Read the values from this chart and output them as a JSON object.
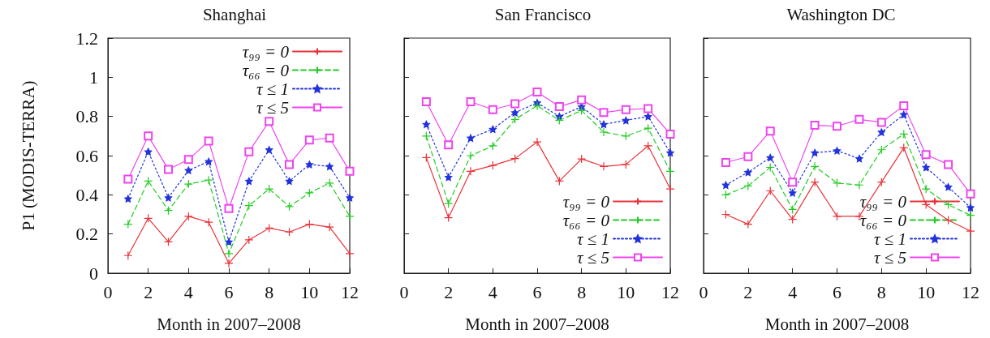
{
  "chart_data": [
    {
      "type": "line",
      "title": "Shanghai",
      "xlabel": "Month in 2007–2008",
      "ylabel": "P1 (MODIS-TERRA)",
      "x": [
        1,
        2,
        3,
        4,
        5,
        6,
        7,
        8,
        9,
        10,
        11,
        12
      ],
      "xlim": [
        0,
        12
      ],
      "xticks": [
        0,
        2,
        4,
        6,
        8,
        10,
        12
      ],
      "ylim": [
        0,
        1.2
      ],
      "yticks": [
        0,
        0.2,
        0.4,
        0.6,
        0.8,
        1,
        1.2
      ],
      "legend": "top right",
      "series": [
        {
          "name": "τ₉₉ = 0",
          "color": "#e8333a",
          "marker": "cross",
          "line_style": "solid",
          "values": [
            0.09,
            0.28,
            0.16,
            0.29,
            0.26,
            0.05,
            0.17,
            0.23,
            0.21,
            0.25,
            0.235,
            0.1
          ]
        },
        {
          "name": "τ₆₆ = 0",
          "color": "#22cc22",
          "marker": "cross",
          "line_style": "dashed",
          "values": [
            0.25,
            0.47,
            0.32,
            0.455,
            0.475,
            0.1,
            0.345,
            0.43,
            0.34,
            0.41,
            0.46,
            0.29
          ]
        },
        {
          "name": "τ ≤ 1",
          "color": "#2233dd",
          "marker": "star",
          "line_style": "dotted",
          "values": [
            0.38,
            0.62,
            0.385,
            0.525,
            0.57,
            0.16,
            0.47,
            0.63,
            0.47,
            0.555,
            0.545,
            0.385
          ]
        },
        {
          "name": "τ ≤ 5",
          "color": "#ee44ee",
          "marker": "square",
          "line_style": "solid",
          "values": [
            0.48,
            0.7,
            0.53,
            0.58,
            0.675,
            0.33,
            0.62,
            0.775,
            0.555,
            0.68,
            0.69,
            0.52
          ]
        }
      ]
    },
    {
      "type": "line",
      "title": "San Francisco",
      "xlabel": "Month in 2007–2008",
      "x": [
        1,
        2,
        3,
        4,
        5,
        6,
        7,
        8,
        9,
        10,
        11,
        12
      ],
      "xlim": [
        0,
        12
      ],
      "xticks": [
        0,
        2,
        4,
        6,
        8,
        10,
        12
      ],
      "ylim": [
        0,
        1.2
      ],
      "yticks": [
        0,
        0.2,
        0.4,
        0.6,
        0.8,
        1,
        1.2
      ],
      "legend": "bottom right",
      "tick_labels": "x",
      "series": [
        {
          "name": "τ₉₉ = 0",
          "color": "#e8333a",
          "marker": "cross",
          "line_style": "solid",
          "values": [
            0.59,
            0.283,
            0.52,
            0.55,
            0.585,
            0.67,
            0.47,
            0.583,
            0.545,
            0.555,
            0.65,
            0.43
          ]
        },
        {
          "name": "τ₆₆ = 0",
          "color": "#22cc22",
          "marker": "cross",
          "line_style": "dashed",
          "values": [
            0.7,
            0.355,
            0.6,
            0.65,
            0.785,
            0.855,
            0.78,
            0.83,
            0.72,
            0.7,
            0.74,
            0.52
          ]
        },
        {
          "name": "τ ≤ 1",
          "color": "#2233dd",
          "marker": "star",
          "line_style": "dotted",
          "values": [
            0.76,
            0.49,
            0.69,
            0.735,
            0.82,
            0.87,
            0.8,
            0.85,
            0.76,
            0.78,
            0.8,
            0.615
          ]
        },
        {
          "name": "τ ≤ 5",
          "color": "#ee44ee",
          "marker": "square",
          "line_style": "solid",
          "values": [
            0.875,
            0.655,
            0.875,
            0.835,
            0.865,
            0.925,
            0.85,
            0.885,
            0.82,
            0.835,
            0.84,
            0.71
          ]
        }
      ]
    },
    {
      "type": "line",
      "title": "Washington DC",
      "xlabel": "Month in 2007–2008",
      "x": [
        1,
        2,
        3,
        4,
        5,
        6,
        7,
        8,
        9,
        10,
        11,
        12
      ],
      "xlim": [
        0,
        12
      ],
      "xticks": [
        0,
        2,
        4,
        6,
        8,
        10,
        12
      ],
      "ylim": [
        0,
        1.2
      ],
      "yticks": [
        0,
        0.2,
        0.4,
        0.6,
        0.8,
        1,
        1.2
      ],
      "legend": "bottom right",
      "tick_labels": "x",
      "series": [
        {
          "name": "τ₉₉ = 0",
          "color": "#e8333a",
          "marker": "cross",
          "line_style": "solid",
          "values": [
            0.3,
            0.25,
            0.42,
            0.275,
            0.465,
            0.29,
            0.29,
            0.465,
            0.64,
            0.35,
            0.27,
            0.215
          ]
        },
        {
          "name": "τ₆₆ = 0",
          "color": "#22cc22",
          "marker": "cross",
          "line_style": "dashed",
          "values": [
            0.4,
            0.445,
            0.54,
            0.325,
            0.545,
            0.46,
            0.45,
            0.63,
            0.71,
            0.43,
            0.35,
            0.295
          ]
        },
        {
          "name": "τ ≤ 1",
          "color": "#2233dd",
          "marker": "star",
          "line_style": "dotted",
          "values": [
            0.45,
            0.515,
            0.59,
            0.41,
            0.615,
            0.625,
            0.585,
            0.72,
            0.81,
            0.54,
            0.44,
            0.335
          ]
        },
        {
          "name": "τ ≤ 5",
          "color": "#ee44ee",
          "marker": "square",
          "line_style": "solid",
          "values": [
            0.565,
            0.595,
            0.725,
            0.465,
            0.755,
            0.75,
            0.785,
            0.77,
            0.855,
            0.605,
            0.555,
            0.405
          ]
        }
      ]
    }
  ]
}
